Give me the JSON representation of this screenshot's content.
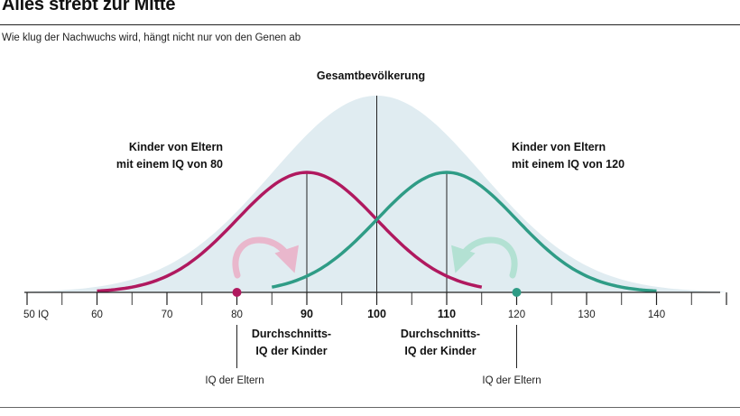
{
  "header": {
    "title": "Alles strebt zur Mitte",
    "subtitle": "Wie klug der Nachwuchs wird, hängt nicht nur von den Genen ab"
  },
  "colors": {
    "population_fill": "#e0ecf1",
    "parents80": "#b0195f",
    "parents120": "#2f9c86",
    "arrow80": "#e9b7cc",
    "arrow120": "#b3e1d3",
    "axis": "#222222"
  },
  "chart_data": {
    "type": "area",
    "title": "Gesamtbevölkerung",
    "xlim": [
      50,
      150
    ],
    "x_ticks": [
      50,
      60,
      70,
      80,
      90,
      100,
      110,
      120,
      130,
      140
    ],
    "x_tick_labels": [
      "50 IQ",
      "60",
      "70",
      "80",
      "90",
      "100",
      "110",
      "120",
      "130",
      "140"
    ],
    "highlighted_ticks": [
      90,
      100,
      110
    ],
    "series": [
      {
        "name": "Gesamtbevölkerung",
        "kind": "area",
        "mean": 100,
        "sd": 15,
        "relative_peak": 1.0,
        "range": [
          50,
          150
        ]
      },
      {
        "name": "Kinder von Eltern mit einem IQ von 80",
        "kind": "line",
        "color": "#b0195f",
        "mean": 90,
        "sd": 10,
        "relative_peak": 0.61,
        "range": [
          60,
          115
        ]
      },
      {
        "name": "Kinder von Eltern mit einem IQ von 120",
        "kind": "line",
        "color": "#2f9c86",
        "mean": 110,
        "sd": 10,
        "relative_peak": 0.61,
        "range": [
          85,
          140
        ]
      }
    ],
    "annotations": {
      "population_label": "Gesamtbevölkerung",
      "left_group_label": [
        "Kinder von Eltern",
        "mit einem IQ von 80"
      ],
      "right_group_label": [
        "Kinder von Eltern",
        "mit einem IQ von 120"
      ],
      "child_mean_label": [
        "Durchschnitts-",
        "IQ der Kinder"
      ],
      "parents_label": "IQ der Eltern",
      "parent_points": [
        80,
        120
      ],
      "child_means": [
        90,
        110
      ]
    }
  }
}
